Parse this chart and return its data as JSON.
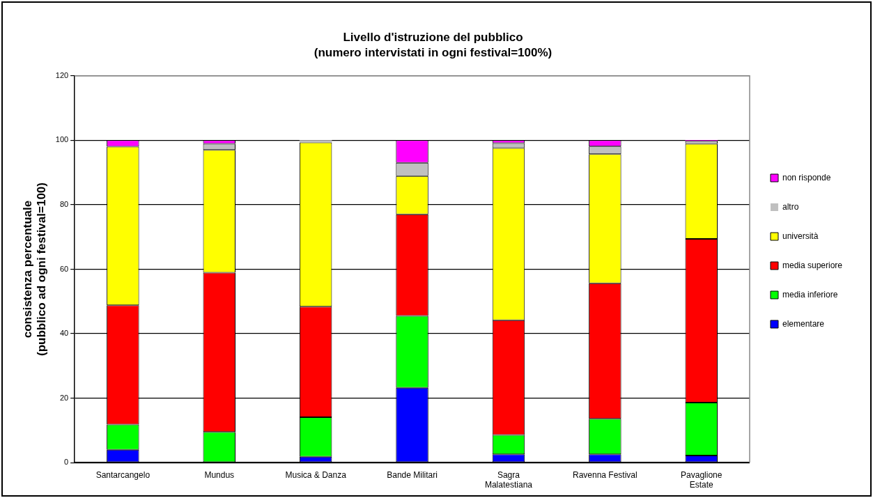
{
  "chart_data": {
    "type": "bar",
    "stacked": true,
    "title": "Livello d'istruzione del pubblico",
    "subtitle": "(numero intervistati in ogni festival=100%)",
    "ylabel": "consistenza percentuale (pubblico ad ogni festival=100)",
    "categories": [
      "Santarcangelo",
      "Mundus",
      "Musica & Danza",
      "Bande Militari",
      "Sagra Malatestiana",
      "Ravenna Festival",
      "Pavaglione Estate"
    ],
    "series": [
      {
        "name": "elementare",
        "color": "#0000ff",
        "values": [
          4.0,
          0,
          1.8,
          23.2,
          2.6,
          2.6,
          2.2
        ]
      },
      {
        "name": "media inferiore",
        "color": "#00ff00",
        "values": [
          7.8,
          9.5,
          12.3,
          22.3,
          6.0,
          11.0,
          16.4
        ]
      },
      {
        "name": "media superiore",
        "color": "#ff0000",
        "values": [
          37.0,
          49.4,
          34.3,
          31.5,
          35.6,
          42.0,
          50.8
        ]
      },
      {
        "name": "università",
        "color": "#ffff00",
        "values": [
          49.2,
          38.1,
          50.9,
          11.9,
          53.4,
          40.1,
          29.5
        ]
      },
      {
        "name": "altro",
        "color": "#c0c0c0",
        "values": [
          0,
          1.9,
          0.7,
          4.1,
          1.5,
          2.4,
          0.9
        ]
      },
      {
        "name": "non risponde",
        "color": "#ff00ff",
        "values": [
          2.0,
          1.1,
          0,
          7.0,
          0.9,
          1.9,
          0.2
        ]
      }
    ],
    "ylim": [
      0,
      120
    ],
    "yticks": [
      0,
      20,
      40,
      60,
      80,
      100,
      120
    ],
    "grid": "y",
    "legend": "right"
  }
}
